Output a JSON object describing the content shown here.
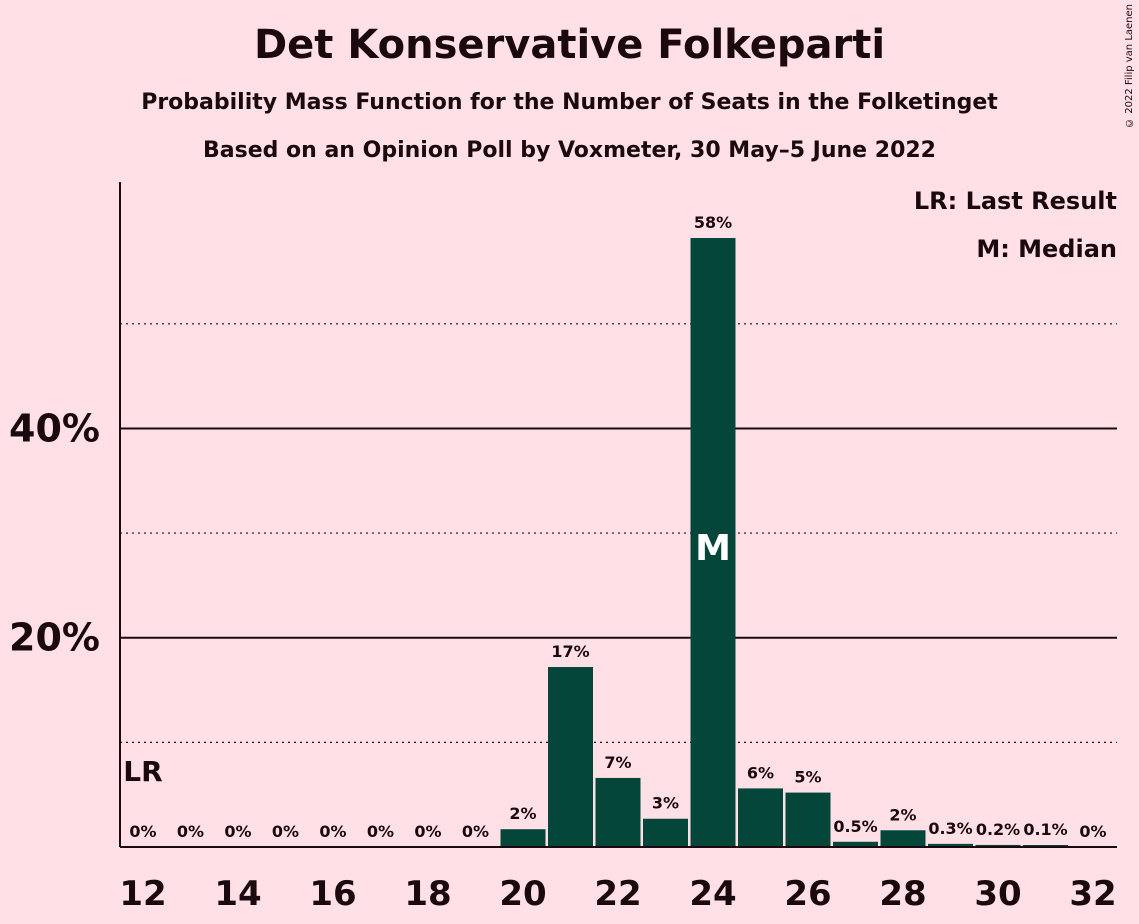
{
  "title": "Det Konservative Folkeparti",
  "subtitle": "Probability Mass Function for the Number of Seats in the Folketinget",
  "subtitle2": "Based on an Opinion Poll by Voxmeter, 30 May–5 June 2022",
  "copyright": "© 2022 Filip van Laenen",
  "legend": {
    "last_result": "LR: Last Result",
    "median": "M: Median"
  },
  "markers": {
    "last_result_label": "LR",
    "last_result_seats": 12,
    "median_label": "M",
    "median_seats": 24
  },
  "colors": {
    "background": "#ffe0e6",
    "bar": "#04463a",
    "text": "#1a0a10"
  },
  "chart_data": {
    "type": "bar",
    "x": [
      12,
      13,
      14,
      15,
      16,
      17,
      18,
      19,
      20,
      21,
      22,
      23,
      24,
      25,
      26,
      27,
      28,
      29,
      30,
      31,
      32
    ],
    "values": [
      0,
      0,
      0,
      0,
      0,
      0,
      0,
      0,
      1.7,
      17.2,
      6.6,
      2.7,
      58.2,
      5.6,
      5.2,
      0.5,
      1.6,
      0.3,
      0.2,
      0.1,
      0
    ],
    "data_labels": [
      "0%",
      "0%",
      "0%",
      "0%",
      "0%",
      "0%",
      "0%",
      "0%",
      "2%",
      "17%",
      "7%",
      "3%",
      "58%",
      "6%",
      "5%",
      "0.5%",
      "2%",
      "0.3%",
      "0.2%",
      "0.1%",
      "0%"
    ],
    "x_ticks": [
      12,
      14,
      16,
      18,
      20,
      22,
      24,
      26,
      28,
      30,
      32
    ],
    "y_ticks": [
      20,
      40
    ],
    "y_tick_labels": [
      "20%",
      "40%"
    ],
    "y_minor_gridlines": [
      10,
      30,
      50
    ],
    "ylim": [
      0,
      63
    ],
    "grid": true,
    "legend_position": "top-right",
    "title": "Det Konservative Folkeparti",
    "xlabel": "",
    "ylabel": ""
  }
}
